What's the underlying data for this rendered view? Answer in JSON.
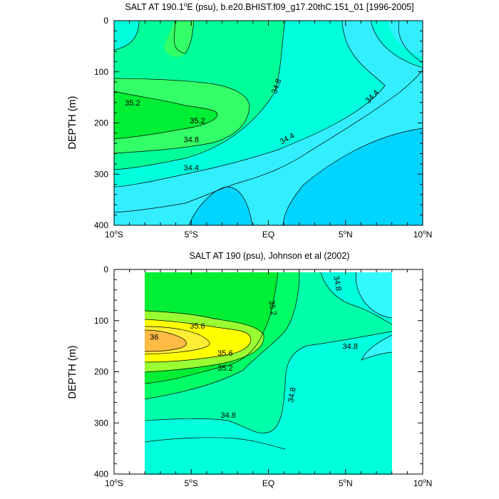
{
  "chart_data": [
    {
      "type": "contour",
      "title": "SALT AT 190.1°E (psu), b.e20.BHIST.f09_g17.20thC.151_01 [1996-2005]",
      "title_parts": {
        "pre": "SALT AT 190.1",
        "sup": "o",
        "post": "E (psu), b.e20.BHIST.f09_g17.20thC.151_01 [1996-2005]"
      },
      "xlabel": "",
      "ylabel": "DEPTH (m)",
      "xlim": [
        -10,
        10
      ],
      "ylim": [
        400,
        0
      ],
      "y_reversed": true,
      "xticks": [
        {
          "value": -10,
          "num": "10",
          "deg": "o",
          "hemi": "S"
        },
        {
          "value": -5,
          "num": "5",
          "deg": "o",
          "hemi": "S"
        },
        {
          "value": 0,
          "num": "EQ",
          "deg": "",
          "hemi": ""
        },
        {
          "value": 5,
          "num": "5",
          "deg": "o",
          "hemi": "N"
        },
        {
          "value": 10,
          "num": "10",
          "deg": "o",
          "hemi": "N"
        }
      ],
      "yticks": [
        0,
        100,
        200,
        300,
        400
      ],
      "contour_levels": [
        34.4,
        34.6,
        34.8,
        35.0,
        35.2
      ],
      "fill_colors": [
        "#00d4ff",
        "#33eeff",
        "#00ffdd",
        "#00ff99",
        "#33ff66",
        "#00ee33"
      ],
      "contour_labels": [
        {
          "text": "35.2",
          "x": -8.8,
          "y": 160,
          "angle": 0
        },
        {
          "text": "35.2",
          "x": -4.6,
          "y": 195,
          "angle": 0
        },
        {
          "text": "34.8",
          "x": 0.5,
          "y": 128,
          "angle": -70
        },
        {
          "text": "34.8",
          "x": -5.0,
          "y": 232,
          "angle": 0
        },
        {
          "text": "34.4",
          "x": 1.2,
          "y": 230,
          "angle": -30
        },
        {
          "text": "34.4",
          "x": -5.0,
          "y": 287,
          "angle": 0
        },
        {
          "text": "34.4",
          "x": 6.7,
          "y": 148,
          "angle": -45
        }
      ]
    },
    {
      "type": "contour",
      "title": "SALT AT 190 (psu), Johnson et al (2002)",
      "xlabel": "",
      "ylabel": "DEPTH (m)",
      "xlim": [
        -10,
        10
      ],
      "ylim": [
        400,
        0
      ],
      "y_reversed": true,
      "data_xrange": [
        -8,
        8
      ],
      "data_yrange": [
        5,
        400
      ],
      "xticks": [
        {
          "value": -10,
          "num": "10",
          "deg": "o",
          "hemi": "S"
        },
        {
          "value": -5,
          "num": "5",
          "deg": "o",
          "hemi": "S"
        },
        {
          "value": 0,
          "num": "EQ",
          "deg": "",
          "hemi": ""
        },
        {
          "value": 5,
          "num": "5",
          "deg": "o",
          "hemi": "N"
        },
        {
          "value": 10,
          "num": "10",
          "deg": "o",
          "hemi": "N"
        }
      ],
      "yticks": [
        0,
        100,
        200,
        300,
        400
      ],
      "contour_levels": [
        34.6,
        34.8,
        35.0,
        35.2,
        35.4,
        35.6,
        35.8,
        36.0
      ],
      "fill_colors": [
        "#33f9ff",
        "#00ffdd",
        "#00ffaa",
        "#00ff66",
        "#00ee33",
        "#99ff33",
        "#ffff00",
        "#ffee33",
        "#ffbb44"
      ],
      "contour_labels": [
        {
          "text": "36",
          "x": -7.4,
          "y": 132,
          "angle": 0
        },
        {
          "text": "35.6",
          "x": -4.6,
          "y": 110,
          "angle": 0
        },
        {
          "text": "35.6",
          "x": -2.8,
          "y": 163,
          "angle": 0
        },
        {
          "text": "35.2",
          "x": -2.8,
          "y": 192,
          "angle": 0
        },
        {
          "text": "35.2",
          "x": 0.3,
          "y": 75,
          "angle": 80
        },
        {
          "text": "34.8",
          "x": 4.5,
          "y": 27,
          "angle": 80
        },
        {
          "text": "34.8",
          "x": 5.3,
          "y": 150,
          "angle": 0
        },
        {
          "text": "34.8",
          "x": 1.5,
          "y": 245,
          "angle": -80
        },
        {
          "text": "34.8",
          "x": -2.6,
          "y": 284,
          "angle": 0
        }
      ]
    }
  ]
}
